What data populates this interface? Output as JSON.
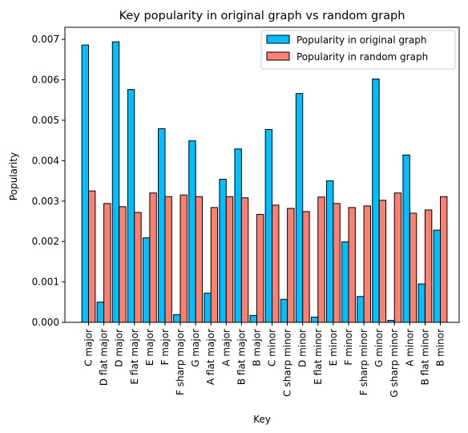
{
  "chart_data": {
    "type": "bar",
    "title": "Key popularity in original graph vs random graph",
    "xlabel": "Key",
    "ylabel": "Popularity",
    "ylim": [
      0,
      0.0073
    ],
    "yticks": [
      "0.000",
      "0.001",
      "0.002",
      "0.003",
      "0.004",
      "0.005",
      "0.006",
      "0.007"
    ],
    "ytick_values": [
      0,
      0.001,
      0.002,
      0.003,
      0.004,
      0.005,
      0.006,
      0.007
    ],
    "grid": false,
    "legend_position": "top-right",
    "categories": [
      "C major",
      "D flat major",
      "D major",
      "E flat major",
      "E major",
      "F major",
      "F sharp major",
      "G major",
      "A flat major",
      "A major",
      "B flat major",
      "B major",
      "C minor",
      "C sharp minor",
      "D minor",
      "E flat minor",
      "E minor",
      "F minor",
      "F sharp minor",
      "G minor",
      "G sharp minor",
      "A minor",
      "B flat minor",
      "B minor"
    ],
    "series": [
      {
        "name": "Popularity in original graph",
        "color": "#00bfff",
        "values": [
          0.00686,
          0.0005,
          0.00694,
          0.00576,
          0.00209,
          0.00479,
          0.00019,
          0.00449,
          0.00072,
          0.00354,
          0.00429,
          0.00017,
          0.00477,
          0.00057,
          0.00566,
          0.00013,
          0.0035,
          0.00199,
          0.00064,
          0.00602,
          5e-05,
          0.00414,
          0.00095,
          0.00228
        ]
      },
      {
        "name": "Popularity in random graph",
        "color": "#fa8072",
        "values": [
          0.00325,
          0.00294,
          0.00286,
          0.00272,
          0.0032,
          0.00311,
          0.00315,
          0.00311,
          0.00284,
          0.00311,
          0.00308,
          0.00267,
          0.0029,
          0.00282,
          0.00274,
          0.0031,
          0.00294,
          0.00284,
          0.00288,
          0.00302,
          0.0032,
          0.0027,
          0.00278,
          0.00311
        ]
      }
    ]
  }
}
